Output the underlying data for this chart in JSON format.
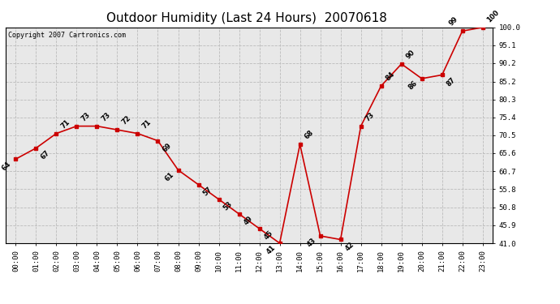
{
  "title": "Outdoor Humidity (Last 24 Hours)  20070618",
  "copyright": "Copyright 2007 Cartronics.com",
  "hours": [
    0,
    1,
    2,
    3,
    4,
    5,
    6,
    7,
    8,
    9,
    10,
    11,
    12,
    13,
    14,
    15,
    16,
    17,
    18,
    19,
    20,
    21,
    22,
    23
  ],
  "values": [
    64,
    67,
    71,
    73,
    73,
    72,
    71,
    69,
    61,
    57,
    53,
    49,
    45,
    41,
    68,
    43,
    42,
    73,
    84,
    90,
    86,
    87,
    99,
    100
  ],
  "xlabels": [
    "00:00",
    "01:00",
    "02:00",
    "03:00",
    "04:00",
    "05:00",
    "06:00",
    "07:00",
    "08:00",
    "09:00",
    "10:00",
    "11:00",
    "12:00",
    "13:00",
    "14:00",
    "15:00",
    "16:00",
    "17:00",
    "18:00",
    "19:00",
    "20:00",
    "21:00",
    "22:00",
    "23:00"
  ],
  "ylim": [
    41.0,
    100.0
  ],
  "ytick_vals": [
    41.0,
    45.9,
    50.8,
    55.8,
    60.7,
    65.6,
    70.5,
    75.4,
    80.3,
    85.2,
    90.2,
    95.1,
    100.0
  ],
  "ytick_labels": [
    "41.0",
    "45.9",
    "50.8",
    "55.8",
    "60.7",
    "65.6",
    "70.5",
    "75.4",
    "80.3",
    "85.2",
    "90.2",
    "95.1",
    "100.0"
  ],
  "line_color": "#cc0000",
  "marker_color": "#cc0000",
  "bg_color": "#ffffff",
  "plot_bg_color": "#e8e8e8",
  "grid_color": "#bbbbbb",
  "title_fontsize": 11,
  "tick_fontsize": 6.5,
  "copyright_fontsize": 6,
  "label_offsets": {
    "0": [
      -0.15,
      -3.5,
      "right"
    ],
    "1": [
      0.15,
      -3.5,
      "left"
    ],
    "2": [
      0.15,
      1.0,
      "left"
    ],
    "3": [
      0.15,
      1.0,
      "left"
    ],
    "4": [
      0.15,
      1.0,
      "left"
    ],
    "5": [
      0.15,
      1.0,
      "left"
    ],
    "6": [
      0.15,
      1.0,
      "left"
    ],
    "7": [
      0.15,
      -3.5,
      "left"
    ],
    "8": [
      -0.15,
      -3.5,
      "right"
    ],
    "9": [
      0.15,
      -3.5,
      "left"
    ],
    "10": [
      0.15,
      -3.5,
      "left"
    ],
    "11": [
      0.15,
      -3.5,
      "left"
    ],
    "12": [
      0.15,
      -3.5,
      "left"
    ],
    "13": [
      -0.15,
      -3.5,
      "right"
    ],
    "14": [
      0.15,
      1.0,
      "left"
    ],
    "15": [
      -0.15,
      -3.5,
      "right"
    ],
    "16": [
      0.15,
      -3.5,
      "left"
    ],
    "17": [
      0.15,
      1.0,
      "left"
    ],
    "18": [
      0.15,
      1.0,
      "left"
    ],
    "19": [
      0.15,
      1.0,
      "left"
    ],
    "20": [
      -0.15,
      -3.5,
      "right"
    ],
    "21": [
      0.15,
      -3.5,
      "left"
    ],
    "22": [
      -0.15,
      1.0,
      "right"
    ],
    "23": [
      0.15,
      1.0,
      "left"
    ]
  }
}
